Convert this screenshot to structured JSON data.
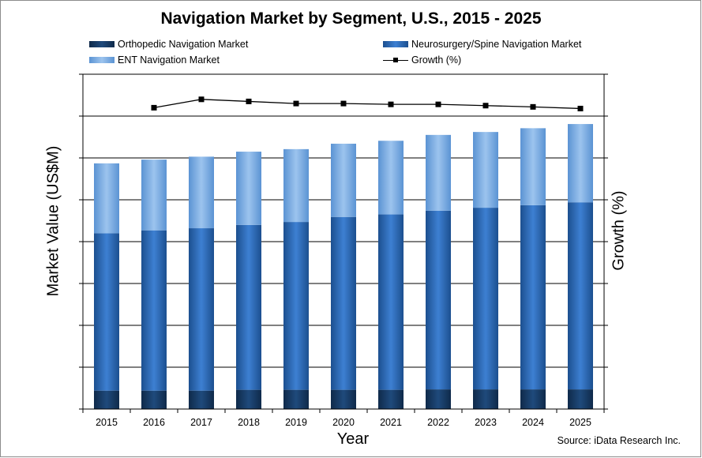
{
  "chart_data": {
    "type": "bar",
    "stacked": true,
    "title": "Navigation Market by Segment, U.S., 2015 - 2025",
    "xlabel": "Year",
    "ylabel": "Market Value (US$M)",
    "y2label": "Growth (%)",
    "source": "Source: iData Research Inc.",
    "categories": [
      "2015",
      "2016",
      "2017",
      "2018",
      "2019",
      "2020",
      "2021",
      "2022",
      "2023",
      "2024",
      "2025"
    ],
    "ylim": [
      0,
      80
    ],
    "y_tick_step": 10,
    "y2lim": [
      0,
      8
    ],
    "y2_tick_step": 1,
    "grid": true,
    "legend_position": "top",
    "series": [
      {
        "name": "Orthopedic Navigation Market",
        "color": "#17375e",
        "values": [
          4.4,
          4.4,
          4.4,
          4.6,
          4.6,
          4.6,
          4.6,
          4.7,
          4.7,
          4.7,
          4.7
        ]
      },
      {
        "name": "Neurosurgery/Spine Navigation Market",
        "color": "#2e6dc0",
        "values": [
          37.6,
          38.3,
          38.8,
          39.4,
          40.1,
          41.3,
          41.9,
          42.7,
          43.4,
          44.0,
          44.7
        ]
      },
      {
        "name": "ENT Navigation Market",
        "color": "#7aaee6",
        "values": [
          16.7,
          16.9,
          17.1,
          17.5,
          17.4,
          17.5,
          17.6,
          18.1,
          18.1,
          18.4,
          18.7
        ]
      }
    ],
    "line_series": {
      "name": "Growth (%)",
      "axis": "secondary",
      "color": "#000000",
      "x": [
        "2016",
        "2017",
        "2018",
        "2019",
        "2020",
        "2021",
        "2022",
        "2023",
        "2024",
        "2025"
      ],
      "values": [
        7.2,
        7.4,
        7.35,
        7.3,
        7.3,
        7.28,
        7.28,
        7.25,
        7.22,
        7.18
      ]
    }
  }
}
